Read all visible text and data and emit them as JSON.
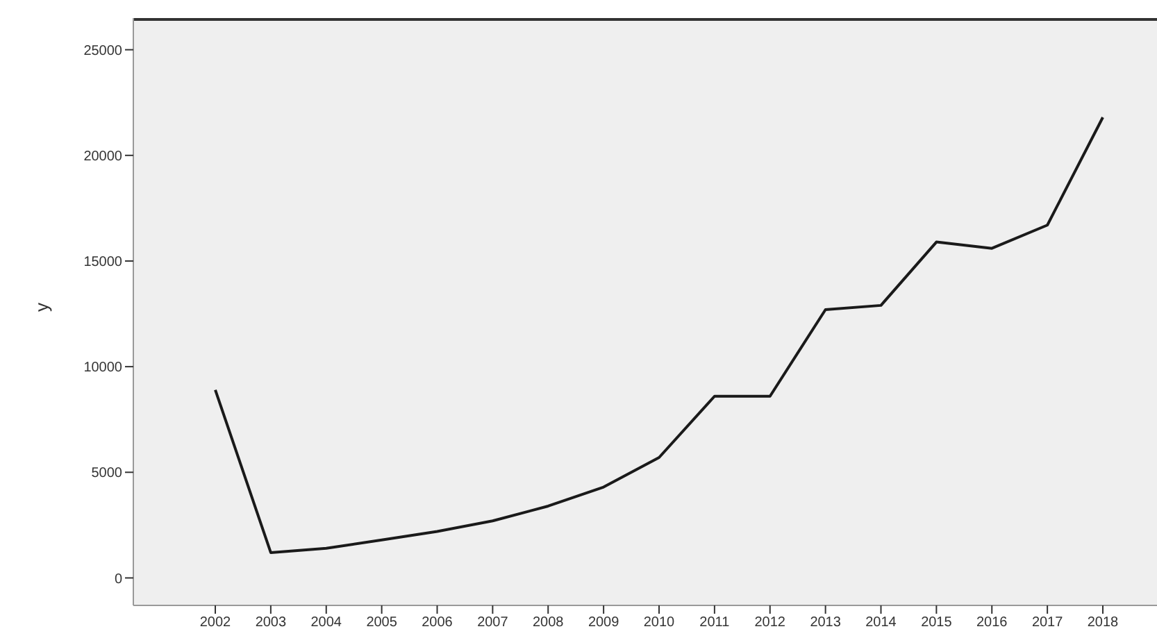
{
  "chart_data": {
    "type": "line",
    "ylabel": "y",
    "categories": [
      "2002",
      "2003",
      "2004",
      "2005",
      "2006",
      "2007",
      "2008",
      "2009",
      "2010",
      "2011",
      "2012",
      "2013",
      "2014",
      "2015",
      "2016",
      "2017",
      "2018"
    ],
    "series": [
      {
        "color": "#1a1a1a",
        "values": [
          8900,
          1200,
          1400,
          1800,
          2200,
          2700,
          3400,
          4300,
          5700,
          8600,
          8600,
          12700,
          12900,
          15900,
          15600,
          16700,
          21800
        ]
      }
    ],
    "ylim": [
      -1300,
      26500
    ],
    "yticks": [
      0,
      5000,
      10000,
      15000,
      20000,
      25000
    ],
    "grid": false,
    "legend": false,
    "marker": "none",
    "line_style": "solid"
  }
}
